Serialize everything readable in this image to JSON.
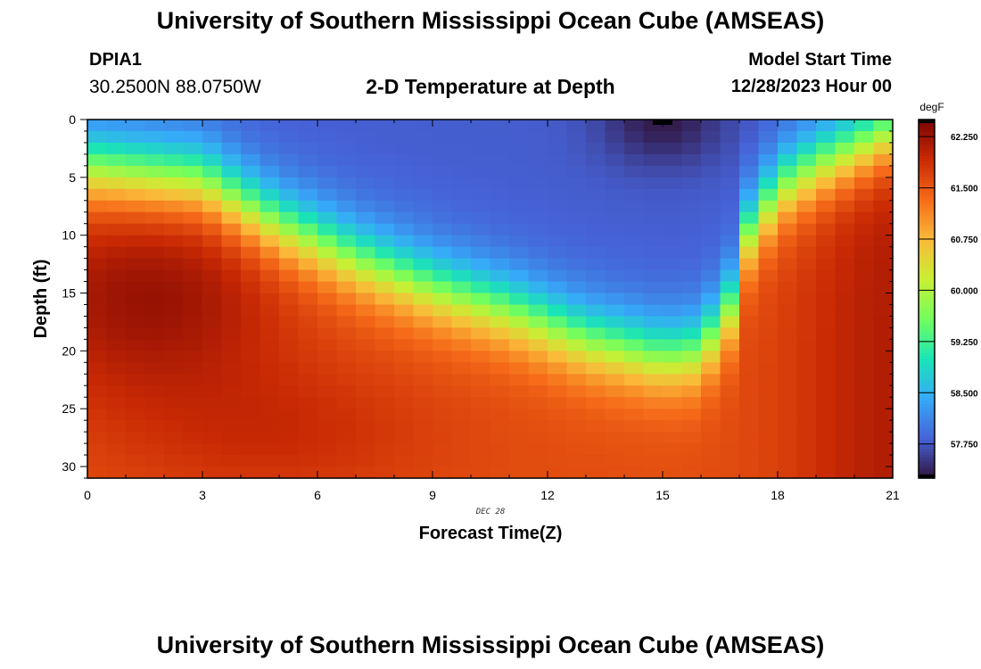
{
  "header": {
    "title": "University of Southern Mississippi Ocean Cube (AMSEAS)",
    "station": "DPIA1",
    "coords": "30.2500N  88.0750W",
    "subtitle": "2-D Temperature at Depth",
    "model_start_label": "Model Start Time",
    "model_start_value": "12/28/2023 Hour 00"
  },
  "footer": {
    "title": "University of Southern Mississippi Ocean Cube (AMSEAS)"
  },
  "colors": {
    "background": "#ffffff",
    "colormap": [
      "#30123b",
      "#4662d7",
      "#36aaf9",
      "#1ae4b6",
      "#72fe5e",
      "#c8ef34",
      "#faba39",
      "#f66b19",
      "#ca2a04",
      "#7a0403"
    ]
  },
  "chart_data": {
    "type": "heatmap",
    "title": "2-D Temperature at Depth",
    "xlabel": "Forecast Time(Z)",
    "ylabel": "Depth (ft)",
    "date_label": "DEC 28",
    "x_range": [
      0,
      21
    ],
    "y_range": [
      0,
      31
    ],
    "x_ticks": [
      0,
      3,
      6,
      9,
      12,
      15,
      18,
      21
    ],
    "x_tick_labels": [
      "0",
      "3",
      "6",
      "9",
      "12",
      "15",
      "18",
      "21"
    ],
    "y_ticks": [
      0,
      5,
      10,
      15,
      20,
      25,
      30
    ],
    "y_tick_labels": [
      "0",
      "5",
      "10",
      "15",
      "20",
      "25",
      "30"
    ],
    "colorbar": {
      "unit": "degF",
      "min": 57.25,
      "max": 62.5,
      "ticks": [
        57.75,
        58.5,
        59.25,
        60.0,
        60.75,
        61.5,
        62.25
      ],
      "tick_labels": [
        "57.750",
        "58.500",
        "59.250",
        "60.000",
        "60.750",
        "61.500",
        "62.250"
      ]
    },
    "field_model": {
      "grid_cols": 42,
      "grid_rows": 31,
      "thermocline_depth_ft_at_hour": [
        [
          0,
          4
        ],
        [
          3,
          5
        ],
        [
          5,
          9
        ],
        [
          7,
          12
        ],
        [
          9,
          14.5
        ],
        [
          11,
          16.5
        ],
        [
          13,
          19
        ],
        [
          15,
          20.5
        ],
        [
          16,
          20
        ],
        [
          16.8,
          16
        ],
        [
          17.2,
          10
        ],
        [
          18,
          6
        ],
        [
          19,
          4
        ],
        [
          21,
          1
        ]
      ],
      "surface_temp_f": 57.8,
      "surface_min_temp_f": 57.3,
      "surface_min_hour": 15,
      "warm_core_temp_f": 62.3,
      "warm_core_hour": 1.6,
      "warm_core_depth_ft": 15,
      "deep_temp_f": 61.6
    }
  }
}
